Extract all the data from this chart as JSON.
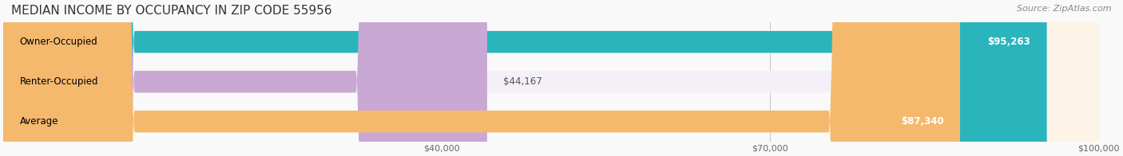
{
  "title": "MEDIAN INCOME BY OCCUPANCY IN ZIP CODE 55956",
  "source": "Source: ZipAtlas.com",
  "categories": [
    "Owner-Occupied",
    "Renter-Occupied",
    "Average"
  ],
  "values": [
    95263,
    44167,
    87340
  ],
  "labels": [
    "$95,263",
    "$44,167",
    "$87,340"
  ],
  "bar_colors": [
    "#2ab5bc",
    "#c9a8d4",
    "#f5b96e"
  ],
  "bar_bg_colors": [
    "#e8f7f8",
    "#f5f0f8",
    "#fdf3e7"
  ],
  "xmin": 0,
  "xmax": 100000,
  "xticks": [
    40000,
    70000,
    100000
  ],
  "xtick_labels": [
    "$40,000",
    "$70,000",
    "$100,000"
  ],
  "title_fontsize": 11,
  "source_fontsize": 8,
  "label_fontsize": 8.5,
  "bar_label_fontsize": 8.5,
  "bar_height": 0.55,
  "background_color": "#f9f9f9",
  "bar_bg_alpha": 1.0
}
